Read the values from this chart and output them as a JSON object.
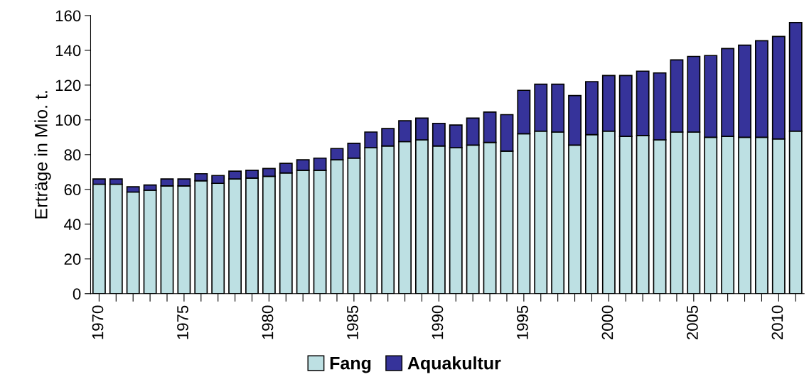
{
  "chart_data": {
    "type": "bar",
    "stacked": true,
    "ylabel": "Erträge in Mio. t.",
    "categories": [
      "1970",
      null,
      null,
      null,
      null,
      "1975",
      null,
      null,
      null,
      null,
      "1980",
      null,
      null,
      null,
      null,
      "1985",
      null,
      null,
      null,
      null,
      "1990",
      null,
      null,
      null,
      null,
      "1995",
      null,
      null,
      null,
      null,
      "2000",
      null,
      null,
      null,
      null,
      "2005",
      null,
      null,
      null,
      null,
      "2010",
      null
    ],
    "series": [
      {
        "name": "Fang",
        "color": "#bde0e3",
        "values": [
          63,
          63,
          58.5,
          59.5,
          62,
          62,
          65,
          63.5,
          66,
          66.5,
          67.5,
          69.5,
          71,
          71,
          77,
          78,
          84,
          85,
          87.5,
          88.5,
          85,
          84,
          85.5,
          87,
          82,
          92,
          93.5,
          93,
          85.5,
          91.5,
          93.5,
          90.5,
          91,
          88.5,
          93,
          93,
          90,
          90.5,
          90,
          90,
          89,
          93.5
        ]
      },
      {
        "name": "Aquakultur",
        "color": "#36339a",
        "values": [
          3,
          3,
          3,
          3,
          4,
          4,
          4,
          4.5,
          4.5,
          4.5,
          4.5,
          5.5,
          6,
          7,
          6.5,
          8.5,
          9,
          10,
          12,
          12.5,
          13,
          13,
          15.5,
          17.5,
          21,
          25,
          27,
          27.5,
          28.5,
          30.5,
          32,
          35,
          37,
          38.5,
          41.5,
          43.5,
          47,
          50.5,
          53,
          55.5,
          59,
          62.5
        ]
      }
    ],
    "ylim": [
      0,
      160
    ],
    "yticks": [
      0,
      20,
      40,
      60,
      80,
      100,
      120,
      140,
      160
    ],
    "grid": false,
    "legend": "bottom"
  }
}
